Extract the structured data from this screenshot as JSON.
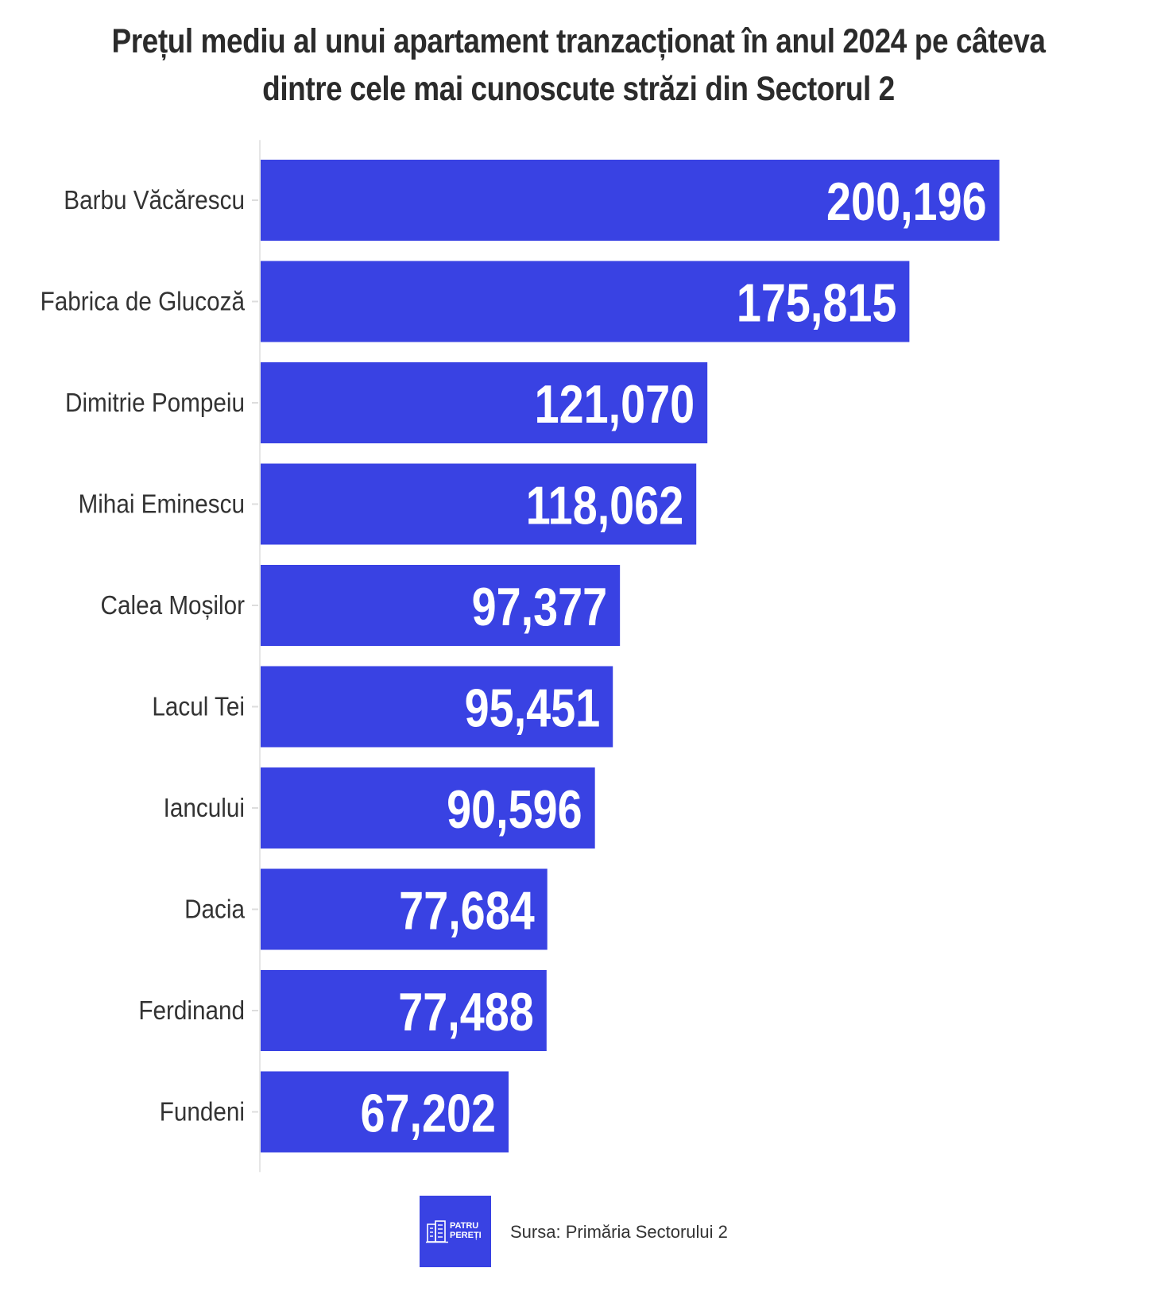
{
  "title": {
    "line1": "Prețul mediu al unui apartament tranzacționat în anul 2024 pe câteva",
    "line2": "dintre cele mai cunoscute străzi din Sectorul 2"
  },
  "footer": {
    "source": "Sursa: Primăria Sectorului 2",
    "logo_line1": "PATRU",
    "logo_line2": "PEREȚI",
    "logo_icon": "building-icon"
  },
  "colors": {
    "bar": "#3942e3",
    "value_label": "#ffffff",
    "axis_text": "#333333"
  },
  "chart_data": {
    "type": "bar",
    "orientation": "horizontal",
    "categories": [
      "Barbu Văcărescu",
      "Fabrica de Glucoză",
      "Dimitrie Pompeiu",
      "Mihai Eminescu",
      "Calea Moșilor",
      "Lacul Tei",
      "Iancului",
      "Dacia",
      "Ferdinand",
      "Fundeni"
    ],
    "values": [
      200196,
      175815,
      121070,
      118062,
      97377,
      95451,
      90596,
      77684,
      77488,
      67202
    ],
    "value_labels": [
      "200,196",
      "175,815",
      "121,070",
      "118,062",
      "97,377",
      "95,451",
      "90,596",
      "77,684",
      "77,488",
      "67,202"
    ],
    "xlim": [
      0,
      230000
    ],
    "grid": false,
    "legend": "none"
  }
}
